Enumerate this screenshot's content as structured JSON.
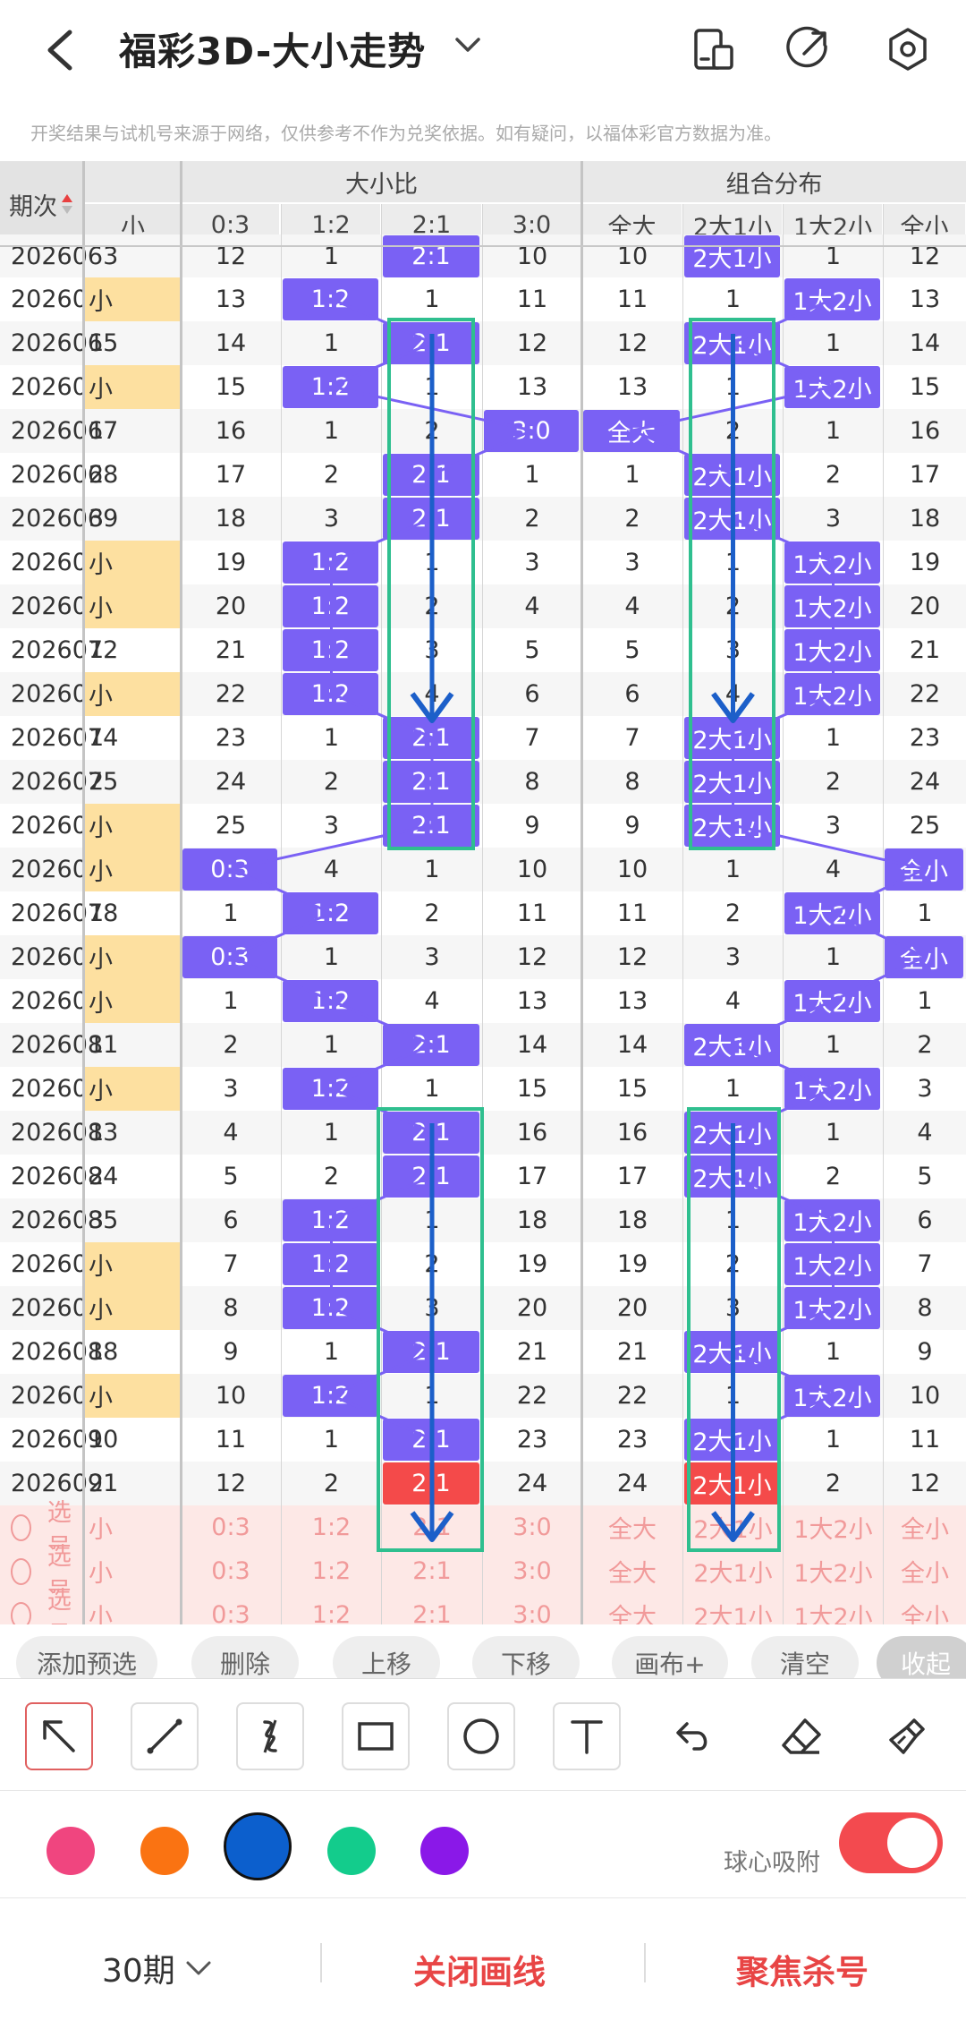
{
  "header": {
    "title": "福彩3D-大小走势",
    "back_icon": "chevron-left-icon",
    "dropdown_icon": "chevron-down-icon",
    "icons": [
      "portrait-layout-icon",
      "share-arrow-icon",
      "settings-hexagon-icon"
    ]
  },
  "notice": "开奖结果与试机号来源于网络，仅供参考不作为兑奖依据。如有疑问，以福体彩官方数据为准。",
  "table": {
    "col_period": "期次",
    "group_size_ratio": "大小比",
    "group_combo": "组合分布",
    "partial_col": "小",
    "ratio_cols": [
      "0:3",
      "1:2",
      "2:1",
      "3:0"
    ],
    "combo_cols": [
      "全大",
      "2大1小",
      "1大2小",
      "全小"
    ],
    "partial_top_row": {
      "period": "2026063",
      "vals": [
        "12",
        "1",
        "2:1",
        "10",
        "10",
        "2大1小",
        "1",
        "12"
      ]
    },
    "rows": [
      {
        "period": "2026064",
        "small": "小",
        "hit": true,
        "v": [
          "13",
          "1:2",
          "1",
          "11",
          "11",
          "1",
          "1大2小",
          "13"
        ]
      },
      {
        "period": "2026065",
        "small": "1",
        "hit": false,
        "v": [
          "14",
          "1",
          "2:1",
          "12",
          "12",
          "2大1小",
          "1",
          "14"
        ]
      },
      {
        "period": "2026066",
        "small": "小",
        "hit": true,
        "v": [
          "15",
          "1:2",
          "1",
          "13",
          "13",
          "1",
          "1大2小",
          "15"
        ]
      },
      {
        "period": "2026067",
        "small": "1",
        "hit": false,
        "v": [
          "16",
          "1",
          "2",
          "3:0",
          "全大",
          "2",
          "1",
          "16"
        ]
      },
      {
        "period": "2026068",
        "small": "2",
        "hit": false,
        "v": [
          "17",
          "2",
          "2:1",
          "1",
          "1",
          "2大1小",
          "2",
          "17"
        ]
      },
      {
        "period": "2026069",
        "small": "3",
        "hit": false,
        "v": [
          "18",
          "3",
          "2:1",
          "2",
          "2",
          "2大1小",
          "3",
          "18"
        ]
      },
      {
        "period": "2026070",
        "small": "小",
        "hit": true,
        "v": [
          "19",
          "1:2",
          "1",
          "3",
          "3",
          "1",
          "1大2小",
          "19"
        ]
      },
      {
        "period": "2026071",
        "small": "小",
        "hit": true,
        "v": [
          "20",
          "1:2",
          "2",
          "4",
          "4",
          "2",
          "1大2小",
          "20"
        ]
      },
      {
        "period": "2026072",
        "small": "1",
        "hit": false,
        "v": [
          "21",
          "1:2",
          "3",
          "5",
          "5",
          "3",
          "1大2小",
          "21"
        ]
      },
      {
        "period": "2026073",
        "small": "小",
        "hit": true,
        "v": [
          "22",
          "1:2",
          "4",
          "6",
          "6",
          "4",
          "1大2小",
          "22"
        ]
      },
      {
        "period": "2026074",
        "small": "1",
        "hit": false,
        "v": [
          "23",
          "1",
          "2:1",
          "7",
          "7",
          "2大1小",
          "1",
          "23"
        ]
      },
      {
        "period": "2026075",
        "small": "2",
        "hit": false,
        "v": [
          "24",
          "2",
          "2:1",
          "8",
          "8",
          "2大1小",
          "2",
          "24"
        ]
      },
      {
        "period": "2026076",
        "small": "小",
        "hit": true,
        "v": [
          "25",
          "3",
          "2:1",
          "9",
          "9",
          "2大1小",
          "3",
          "25"
        ]
      },
      {
        "period": "2026077",
        "small": "小",
        "hit": true,
        "v": [
          "0:3",
          "4",
          "1",
          "10",
          "10",
          "1",
          "4",
          "全小"
        ]
      },
      {
        "period": "2026078",
        "small": "1",
        "hit": false,
        "v": [
          "1",
          "1:2",
          "2",
          "11",
          "11",
          "2",
          "1大2小",
          "1"
        ]
      },
      {
        "period": "2026079",
        "small": "小",
        "hit": true,
        "v": [
          "0:3",
          "1",
          "3",
          "12",
          "12",
          "3",
          "1",
          "全小"
        ]
      },
      {
        "period": "2026080",
        "small": "小",
        "hit": true,
        "v": [
          "1",
          "1:2",
          "4",
          "13",
          "13",
          "4",
          "1大2小",
          "1"
        ]
      },
      {
        "period": "2026081",
        "small": "1",
        "hit": false,
        "v": [
          "2",
          "1",
          "2:1",
          "14",
          "14",
          "2大1小",
          "1",
          "2"
        ]
      },
      {
        "period": "2026082",
        "small": "小",
        "hit": true,
        "v": [
          "3",
          "1:2",
          "1",
          "15",
          "15",
          "1",
          "1大2小",
          "3"
        ]
      },
      {
        "period": "2026083",
        "small": "1",
        "hit": false,
        "v": [
          "4",
          "1",
          "2:1",
          "16",
          "16",
          "2大1小",
          "1",
          "4"
        ]
      },
      {
        "period": "2026084",
        "small": "2",
        "hit": false,
        "v": [
          "5",
          "2",
          "2:1",
          "17",
          "17",
          "2大1小",
          "2",
          "5"
        ]
      },
      {
        "period": "2026085",
        "small": "3",
        "hit": false,
        "v": [
          "6",
          "1:2",
          "1",
          "18",
          "18",
          "1",
          "1大2小",
          "6"
        ]
      },
      {
        "period": "2026086",
        "small": "小",
        "hit": true,
        "v": [
          "7",
          "1:2",
          "2",
          "19",
          "19",
          "2",
          "1大2小",
          "7"
        ]
      },
      {
        "period": "2026087",
        "small": "小",
        "hit": true,
        "v": [
          "8",
          "1:2",
          "3",
          "20",
          "20",
          "3",
          "1大2小",
          "8"
        ]
      },
      {
        "period": "2026088",
        "small": "1",
        "hit": false,
        "v": [
          "9",
          "1",
          "2:1",
          "21",
          "21",
          "2大1小",
          "1",
          "9"
        ]
      },
      {
        "period": "2026089",
        "small": "小",
        "hit": true,
        "v": [
          "10",
          "1:2",
          "1",
          "22",
          "22",
          "1",
          "1大2小",
          "10"
        ]
      },
      {
        "period": "2026090",
        "small": "1",
        "hit": false,
        "v": [
          "11",
          "1",
          "2:1",
          "23",
          "23",
          "2大1小",
          "1",
          "11"
        ]
      },
      {
        "period": "2026091",
        "small": "2",
        "hit": false,
        "v": [
          "12",
          "2",
          "2:1",
          "24",
          "24",
          "2大1小",
          "2",
          "12"
        ]
      }
    ],
    "select_label": "选号",
    "select_rows": 3
  },
  "actions": [
    "添加预选",
    "删除",
    "上移",
    "下移",
    "画布+",
    "清空",
    "收起"
  ],
  "tools": [
    "arrow-tool-icon",
    "line-tool-icon",
    "curve-tool-icon",
    "rectangle-tool-icon",
    "circle-tool-icon",
    "text-tool-icon",
    "undo-icon",
    "eraser-icon",
    "clear-brush-icon"
  ],
  "colors": [
    "#f0457f",
    "#fa7312",
    "#0c5fcd",
    "#13cc8c",
    "#8a18e8"
  ],
  "selected_color": "#0c5fcd",
  "snap_label": "球心吸附",
  "snap_on": true,
  "footer": {
    "periods": "30期",
    "close_draw": "关闭画线",
    "focus_kill": "聚焦杀号"
  }
}
